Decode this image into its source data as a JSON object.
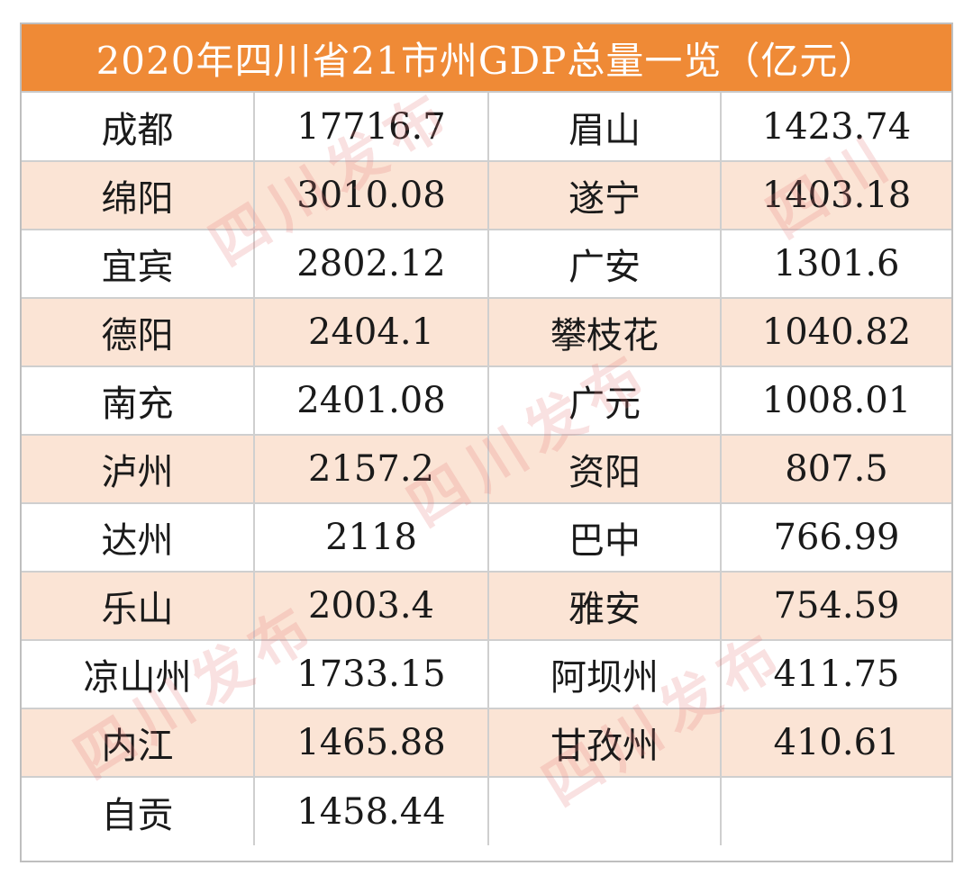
{
  "chart_data": {
    "type": "table",
    "title": "2020年四川省21市州GDP总量一览（亿元）",
    "rows": [
      [
        {
          "city": "成都",
          "gdp": "17716.7"
        },
        {
          "city": "眉山",
          "gdp": "1423.74"
        }
      ],
      [
        {
          "city": "绵阳",
          "gdp": "3010.08"
        },
        {
          "city": "遂宁",
          "gdp": "1403.18"
        }
      ],
      [
        {
          "city": "宜宾",
          "gdp": "2802.12"
        },
        {
          "city": "广安",
          "gdp": "1301.6"
        }
      ],
      [
        {
          "city": "德阳",
          "gdp": "2404.1"
        },
        {
          "city": "攀枝花",
          "gdp": "1040.82"
        }
      ],
      [
        {
          "city": "南充",
          "gdp": "2401.08"
        },
        {
          "city": "广元",
          "gdp": "1008.01"
        }
      ],
      [
        {
          "city": "泸州",
          "gdp": "2157.2"
        },
        {
          "city": "资阳",
          "gdp": "807.5"
        }
      ],
      [
        {
          "city": "达州",
          "gdp": "2118"
        },
        {
          "city": "巴中",
          "gdp": "766.99"
        }
      ],
      [
        {
          "city": "乐山",
          "gdp": "2003.4"
        },
        {
          "city": "雅安",
          "gdp": "754.59"
        }
      ],
      [
        {
          "city": "凉山州",
          "gdp": "1733.15"
        },
        {
          "city": "阿坝州",
          "gdp": "411.75"
        }
      ],
      [
        {
          "city": "内江",
          "gdp": "1465.88"
        },
        {
          "city": "甘孜州",
          "gdp": "410.61"
        }
      ],
      [
        {
          "city": "自贡",
          "gdp": "1458.44"
        },
        {
          "city": "",
          "gdp": ""
        }
      ]
    ]
  },
  "colors": {
    "header_bg": "#ef8a36",
    "header_text": "#ffffff",
    "band_row": "#fbe4d5",
    "plain_row": "#ffffff",
    "grid": "#cfcfcf"
  },
  "watermark": {
    "text": "四川发布"
  }
}
